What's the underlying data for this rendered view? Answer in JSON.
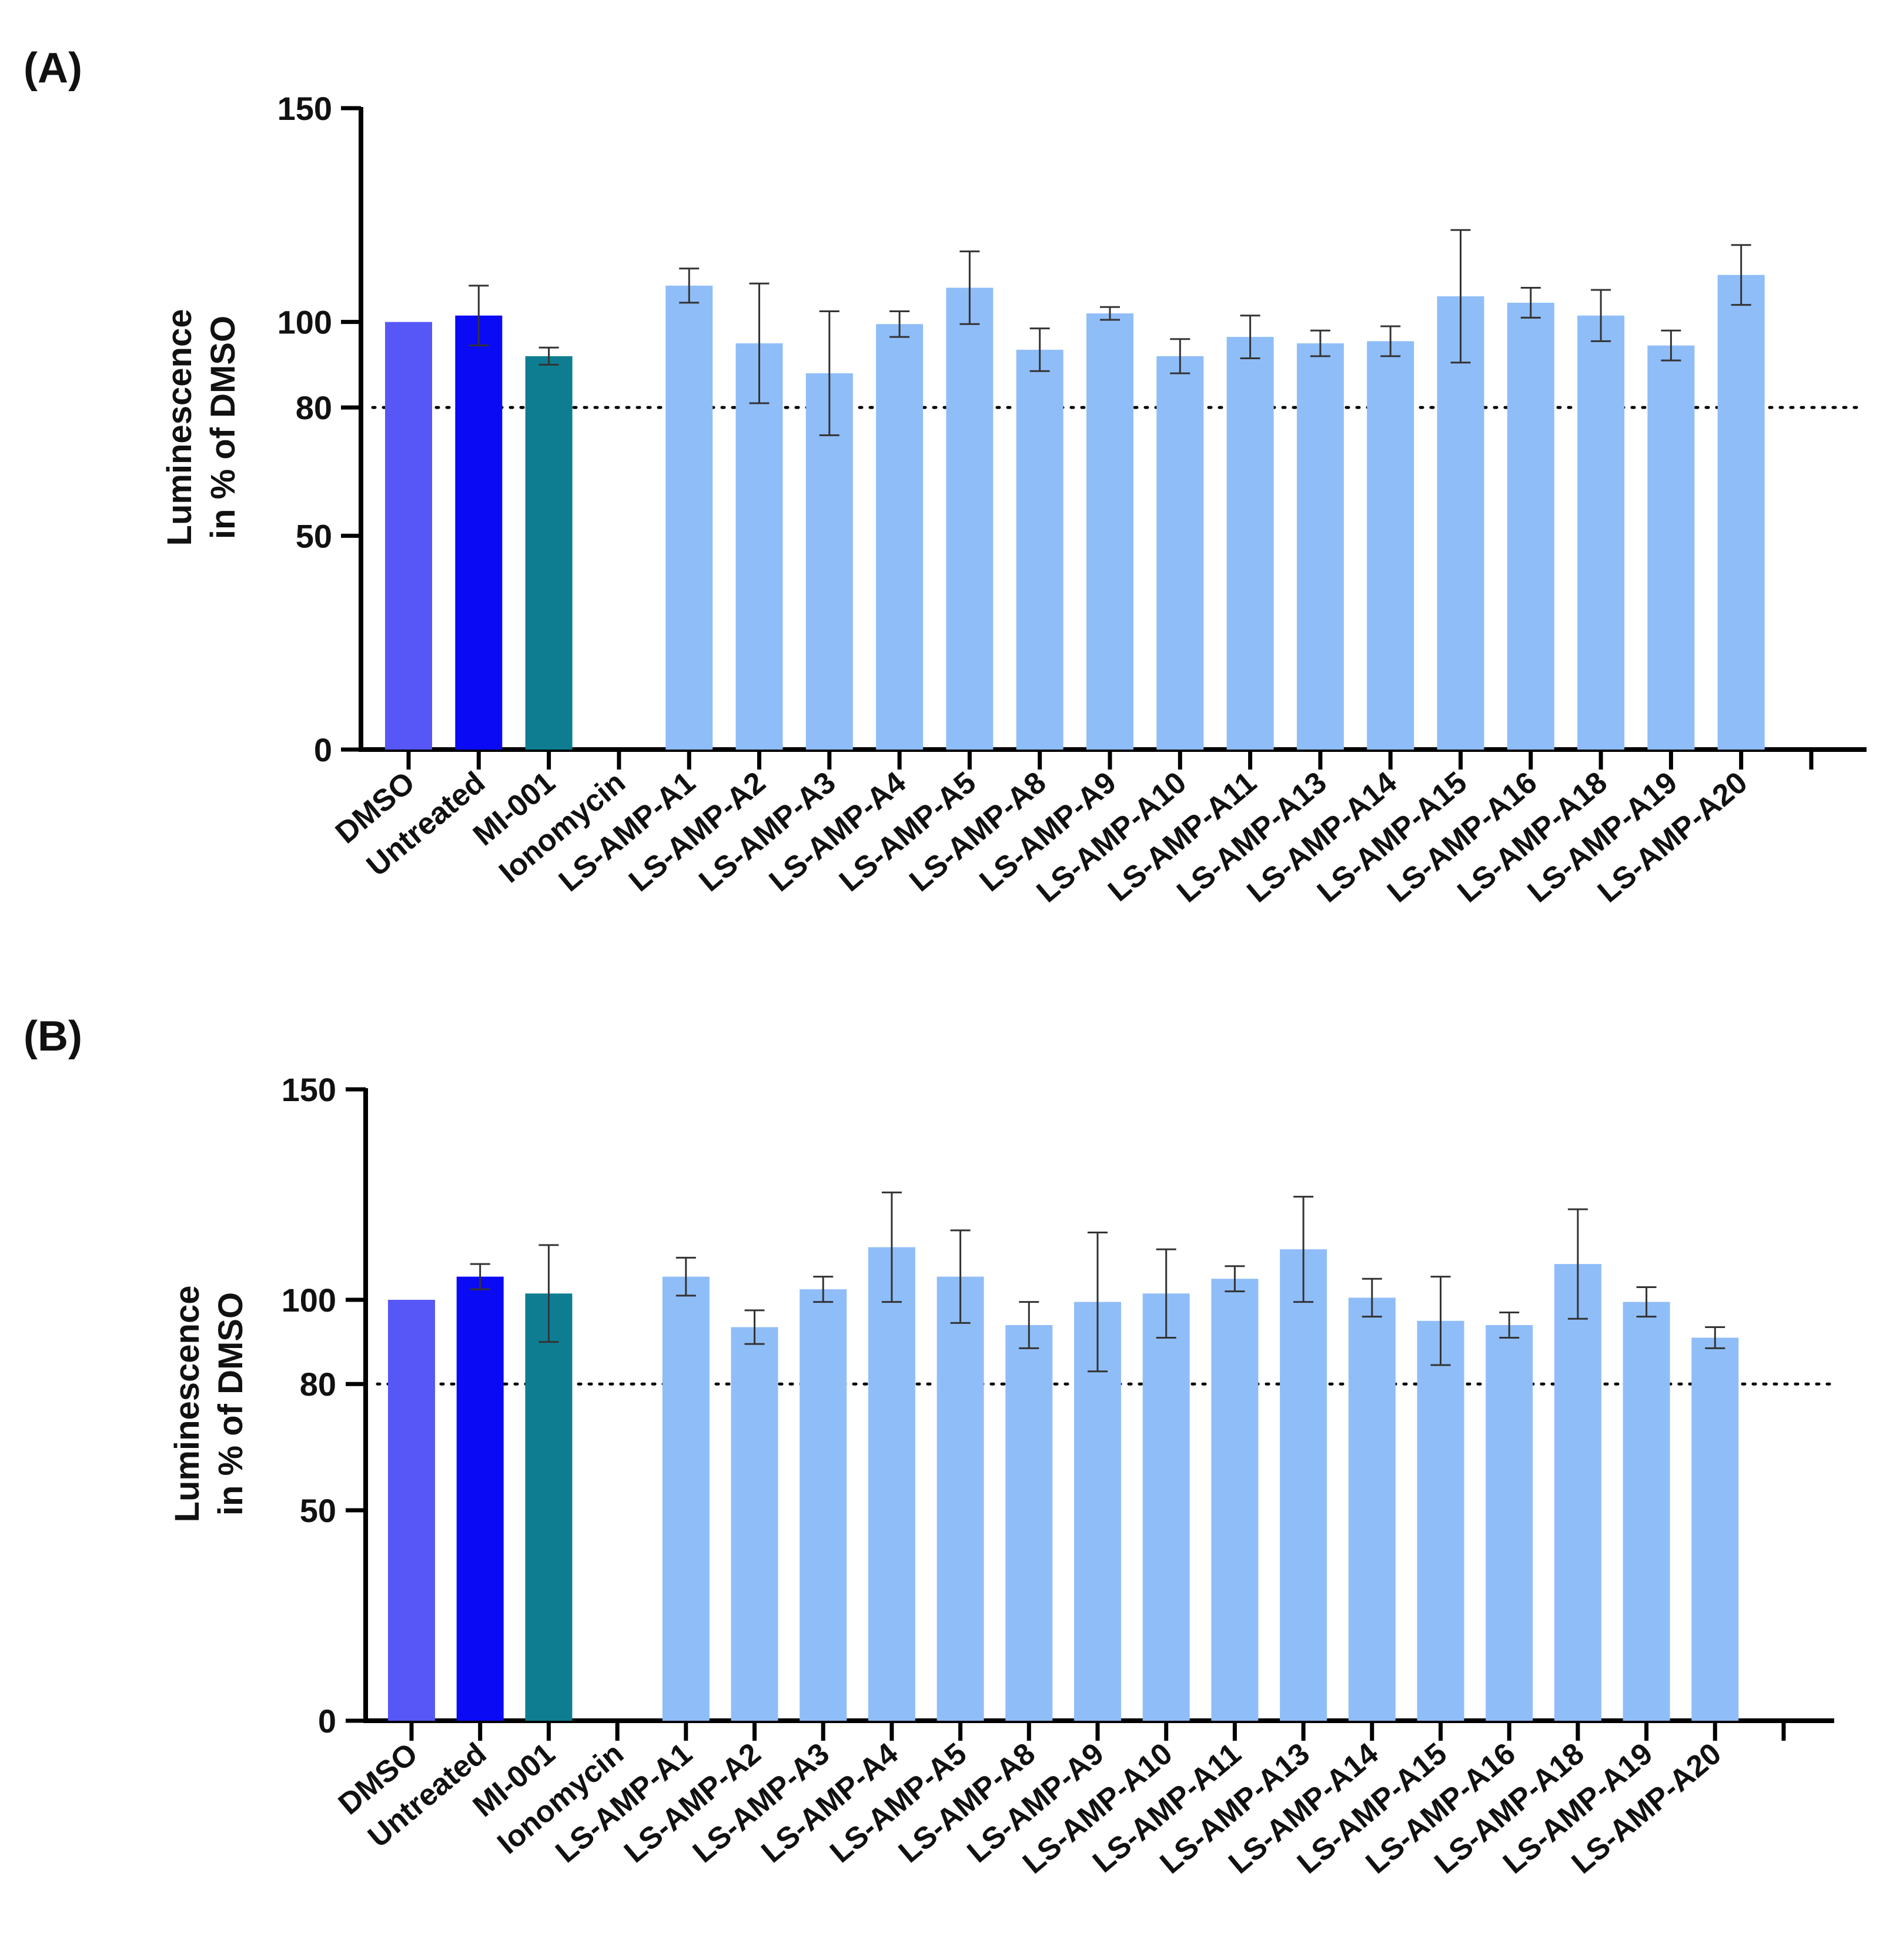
{
  "chart_data": [
    {
      "panel": "(A)",
      "type": "bar",
      "ylabel_line1": "Luminescence",
      "ylabel_line2": "in % of DMSO",
      "ylim": [
        0,
        150
      ],
      "yticks": [
        0,
        50,
        80,
        100,
        150
      ],
      "threshold_line": 80,
      "categories": [
        "DMSO",
        "Untreated",
        "MI-001",
        "Ionomycin",
        "LS-AMP-A1",
        "LS-AMP-A2",
        "LS-AMP-A3",
        "LS-AMP-A4",
        "LS-AMP-A5",
        "LS-AMP-A8",
        "LS-AMP-A9",
        "LS-AMP-A10",
        "LS-AMP-A11",
        "LS-AMP-A13",
        "LS-AMP-A14",
        "LS-AMP-A15",
        "LS-AMP-A16",
        "LS-AMP-A18",
        "LS-AMP-A19",
        "LS-AMP-A20"
      ],
      "values": [
        100,
        101.5,
        92,
        null,
        108.5,
        95,
        88,
        99.5,
        108,
        93.5,
        102,
        92,
        96.5,
        95,
        95.5,
        106,
        104.5,
        101.5,
        94.5,
        111
      ],
      "errors": [
        0,
        7,
        2,
        null,
        4,
        14,
        14.5,
        3,
        8.5,
        5,
        1.5,
        4,
        5,
        3,
        3.5,
        15.5,
        3.5,
        6,
        3.5,
        7
      ],
      "colors": [
        "#5757f8",
        "#0a0af5",
        "#0e7d92",
        "#000000",
        "#8fbdf8",
        "#8fbdf8",
        "#8fbdf8",
        "#8fbdf8",
        "#8fbdf8",
        "#8fbdf8",
        "#8fbdf8",
        "#8fbdf8",
        "#8fbdf8",
        "#8fbdf8",
        "#8fbdf8",
        "#8fbdf8",
        "#8fbdf8",
        "#8fbdf8",
        "#8fbdf8",
        "#8fbdf8"
      ]
    },
    {
      "panel": "(B)",
      "type": "bar",
      "ylabel_line1": "Luminescence",
      "ylabel_line2": "in % of DMSO",
      "ylim": [
        0,
        150
      ],
      "yticks": [
        0,
        50,
        80,
        100,
        150
      ],
      "threshold_line": 80,
      "categories": [
        "DMSO",
        "Untreated",
        "MI-001",
        "Ionomycin",
        "LS-AMP-A1",
        "LS-AMP-A2",
        "LS-AMP-A3",
        "LS-AMP-A4",
        "LS-AMP-A5",
        "LS-AMP-A8",
        "LS-AMP-A9",
        "LS-AMP-A10",
        "LS-AMP-A11",
        "LS-AMP-A13",
        "LS-AMP-A14",
        "LS-AMP-A15",
        "LS-AMP-A16",
        "LS-AMP-A18",
        "LS-AMP-A19",
        "LS-AMP-A20"
      ],
      "values": [
        100,
        105.5,
        101.5,
        null,
        105.5,
        93.5,
        102.5,
        112.5,
        105.5,
        94,
        99.5,
        101.5,
        105,
        112,
        100.5,
        95,
        94,
        108.5,
        99.5,
        91
      ],
      "errors": [
        0,
        3,
        11.5,
        null,
        4.5,
        4,
        3,
        13,
        11,
        5.5,
        16.5,
        10.5,
        3,
        12.5,
        4.5,
        10.5,
        3,
        13,
        3.5,
        2.5
      ],
      "colors": [
        "#5757f8",
        "#0a0af5",
        "#0e7d92",
        "#000000",
        "#8fbdf8",
        "#8fbdf8",
        "#8fbdf8",
        "#8fbdf8",
        "#8fbdf8",
        "#8fbdf8",
        "#8fbdf8",
        "#8fbdf8",
        "#8fbdf8",
        "#8fbdf8",
        "#8fbdf8",
        "#8fbdf8",
        "#8fbdf8",
        "#8fbdf8",
        "#8fbdf8",
        "#8fbdf8"
      ]
    }
  ]
}
